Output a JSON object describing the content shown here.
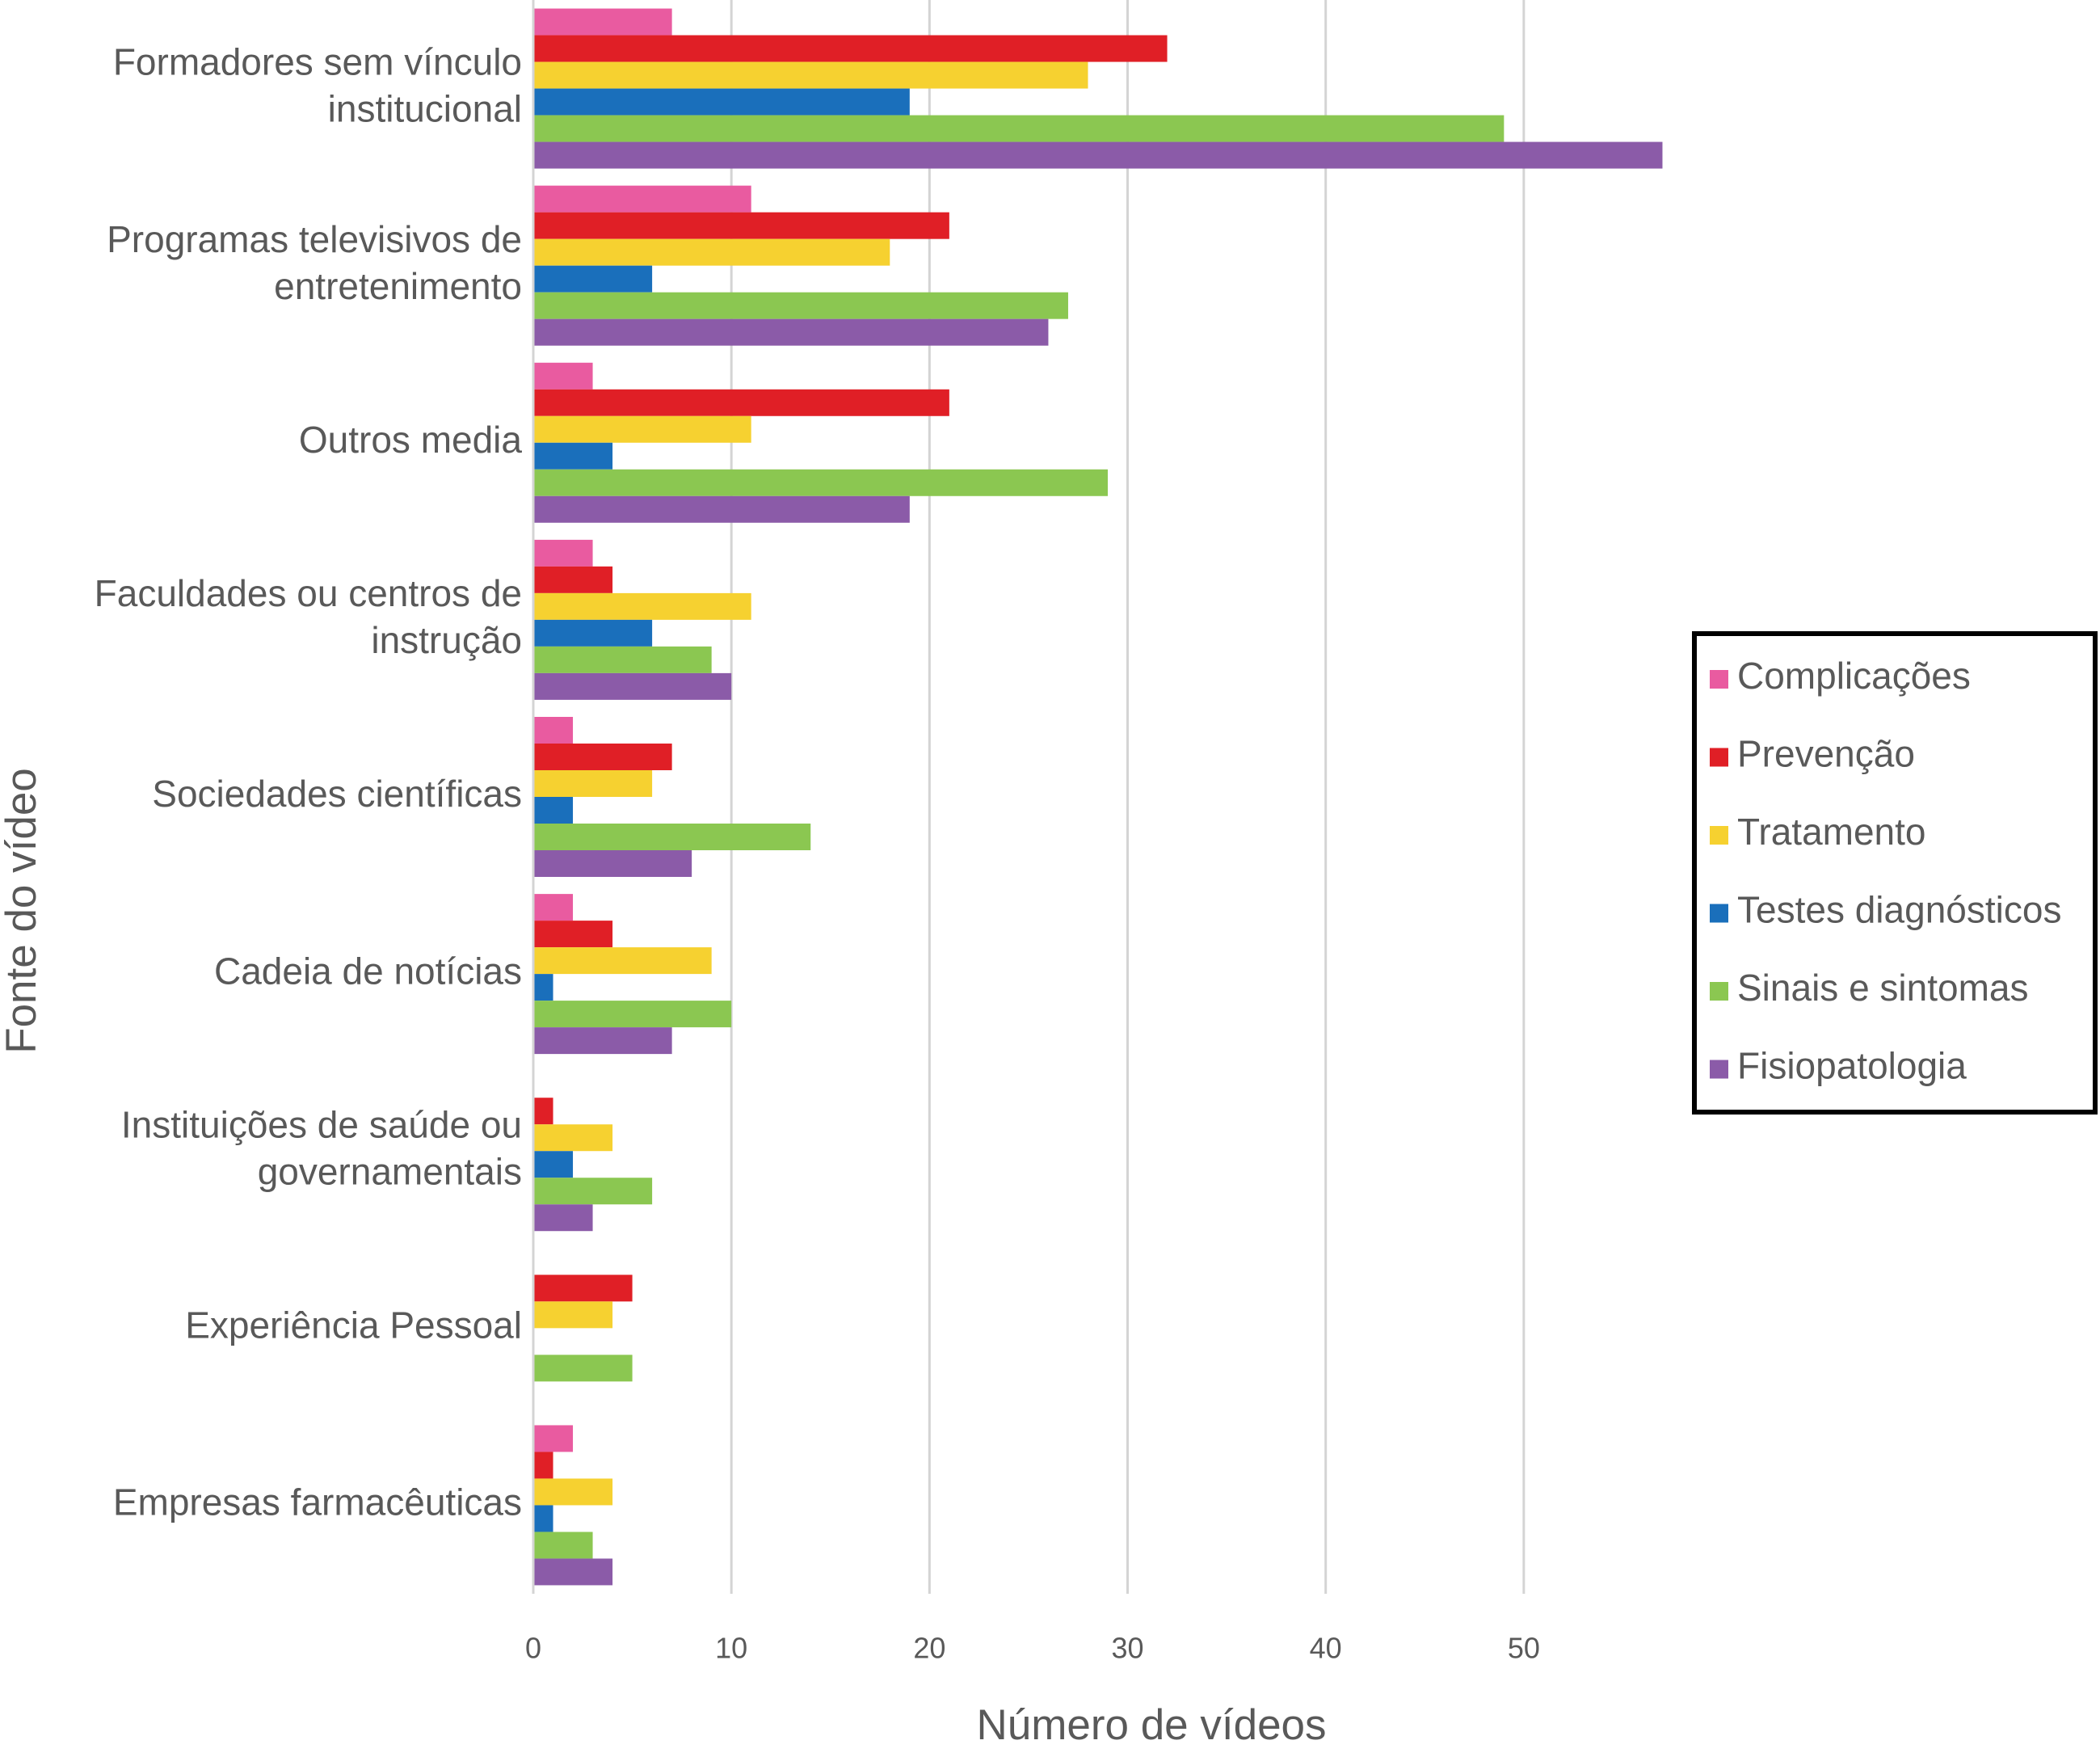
{
  "chart_data": {
    "type": "barh",
    "x_label": "Número de vídeos",
    "y_label": "Fonte do vídeo",
    "categories": [
      [
        "Formadores sem vínculo",
        "institucional"
      ],
      [
        "Programas televisivos de",
        "entretenimento"
      ],
      [
        "Outros media"
      ],
      [
        "Faculdades ou centros de",
        "instrução"
      ],
      [
        "Sociedades científicas"
      ],
      [
        "Cadeia de notícias"
      ],
      [
        "Instituições de saúde ou",
        "governamentais"
      ],
      [
        "Experiência Pessoal"
      ],
      [
        "Empresas farmacêuticas"
      ]
    ],
    "series": [
      {
        "name": "Complicações",
        "color": "#e95ba0",
        "values": [
          7,
          11,
          3,
          3,
          2,
          2,
          0,
          0,
          2
        ]
      },
      {
        "name": "Prevenção",
        "color": "#e01f26",
        "values": [
          32,
          21,
          21,
          4,
          7,
          4,
          1,
          5,
          1
        ]
      },
      {
        "name": "Tratamento",
        "color": "#f6d130",
        "values": [
          28,
          18,
          11,
          11,
          6,
          9,
          4,
          4,
          4
        ]
      },
      {
        "name": "Testes diagnósticos",
        "color": "#1a6fbb",
        "values": [
          19,
          6,
          4,
          6,
          2,
          1,
          2,
          0,
          1
        ]
      },
      {
        "name": "Sinais e sintomas",
        "color": "#8bc751",
        "values": [
          49,
          27,
          29,
          9,
          14,
          10,
          6,
          5,
          3
        ]
      },
      {
        "name": "Fisiopatologia",
        "color": "#8b5ba8",
        "values": [
          57,
          26,
          19,
          10,
          8,
          7,
          3,
          0,
          4
        ]
      }
    ],
    "xlim": [
      0,
      58
    ],
    "xticks": [
      0,
      10,
      20,
      30,
      40,
      50
    ],
    "grid": true,
    "legend": "right"
  }
}
